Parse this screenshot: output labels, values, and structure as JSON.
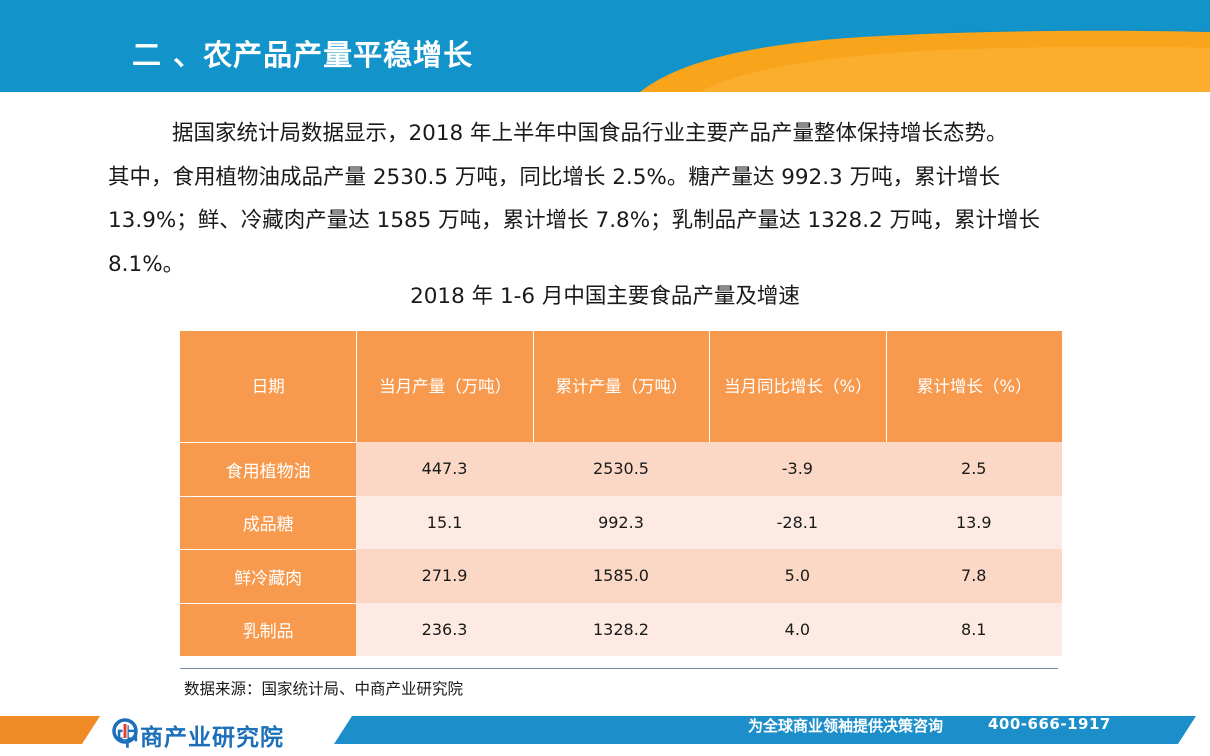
{
  "header": {
    "title": "二 、农产品产量平稳增长"
  },
  "paragraph": {
    "line1": "据国家统计局数据显示，2018 年上半年中国食品行业主要产品产量整体保持增长态势。",
    "line2": "其中，食用植物油成品产量 2530.5 万吨，同比增长 2.5%。糖产量达 992.3 万吨，累计增长",
    "line3": "13.9%；鲜、冷藏肉产量达 1585 万吨，累计增长 7.8%；乳制品产量达 1328.2 万吨，累计增长",
    "line4": "8.1%。"
  },
  "table": {
    "title": "2018 年 1-6 月中国主要食品产量及增速",
    "headers": [
      "日期",
      "当月产量（万吨）",
      "累计产量（万吨）",
      "当月同比增长（%）",
      "累计增长（%）"
    ],
    "rows": [
      {
        "label": "食用植物油",
        "values": [
          "447.3",
          "2530.5",
          "-3.9",
          "2.5"
        ]
      },
      {
        "label": "成品糖",
        "values": [
          "15.1",
          "992.3",
          "-28.1",
          "13.9"
        ]
      },
      {
        "label": "鲜冷藏肉",
        "values": [
          "271.9",
          "1585.0",
          "5.0",
          "7.8"
        ]
      },
      {
        "label": "乳制品",
        "values": [
          "236.3",
          "1328.2",
          "4.0",
          "8.1"
        ]
      }
    ]
  },
  "source": "数据来源：国家统计局、中商产业研究院",
  "footer": {
    "logo_text": "中商产业研究院",
    "slogan": "为全球商业领袖提供决策咨询",
    "phone": "400-666-1917"
  },
  "colors": {
    "header_blue": "#0f8fc4",
    "header_orange": "#f9a51b",
    "table_orange": "#f79a4e",
    "row_light": "#fdebe3",
    "row_dark": "#fbd8c6",
    "footer_blue": "#1c8ec9",
    "footer_orange": "#f08a24"
  }
}
